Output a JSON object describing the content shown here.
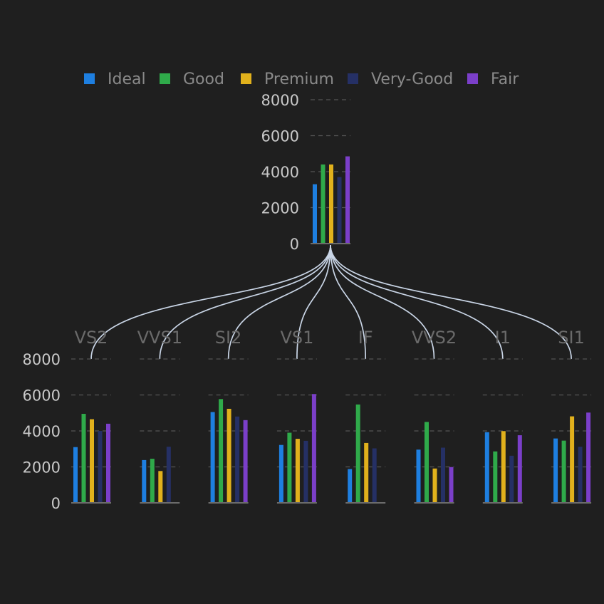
{
  "chart_data": {
    "type": "bar",
    "title": "",
    "legend": {
      "position": "top",
      "items": [
        {
          "name": "Ideal",
          "color": "#1e7fe0"
        },
        {
          "name": "Good",
          "color": "#2faa4a"
        },
        {
          "name": "Premium",
          "color": "#e1b11c"
        },
        {
          "name": "Very-Good",
          "color": "#253065"
        },
        {
          "name": "Fair",
          "color": "#7b3fc9"
        }
      ]
    },
    "y_ticks": [
      "0",
      "2000",
      "4000",
      "6000",
      "8000"
    ],
    "ylim": [
      0,
      8000
    ],
    "grid": true,
    "root": {
      "categories": [
        "Ideal",
        "Good",
        "Premium",
        "Very-Good",
        "Fair"
      ],
      "values": [
        3300,
        4400,
        4400,
        3700,
        4850
      ]
    },
    "groups": [
      {
        "name": "VS2",
        "values": [
          3100,
          4950,
          4650,
          4000,
          4400
        ]
      },
      {
        "name": "VVS1",
        "values": [
          2380,
          2450,
          1770,
          3120,
          null
        ]
      },
      {
        "name": "SI2",
        "values": [
          5050,
          5770,
          5230,
          4800,
          4600
        ]
      },
      {
        "name": "VS1",
        "values": [
          3220,
          3900,
          3560,
          3450,
          6050
        ]
      },
      {
        "name": "IF",
        "values": [
          1880,
          5470,
          3330,
          3030,
          null
        ]
      },
      {
        "name": "VVS2",
        "values": [
          2960,
          4500,
          1910,
          3070,
          1990
        ]
      },
      {
        "name": "I1",
        "values": [
          3930,
          2860,
          3990,
          2620,
          3760
        ]
      },
      {
        "name": "SI1",
        "values": [
          3580,
          3460,
          4810,
          3120,
          5020
        ]
      }
    ]
  }
}
